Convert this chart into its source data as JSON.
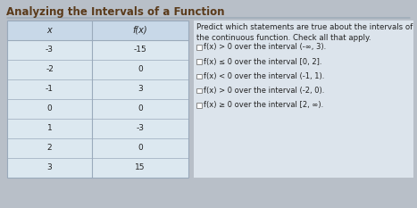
{
  "title": "Analyzing the Intervals of a Function",
  "table_headers": [
    "x",
    "f(x)"
  ],
  "table_rows": [
    [
      "-3",
      "-15"
    ],
    [
      "-2",
      "0"
    ],
    [
      "-1",
      "3"
    ],
    [
      "0",
      "0"
    ],
    [
      "1",
      "-3"
    ],
    [
      "2",
      "0"
    ],
    [
      "3",
      "15"
    ]
  ],
  "prompt_text": "Predict which statements are true about the intervals of\nthe continuous function. Check all that apply.",
  "options": [
    "f(x) > 0 over the interval (-∞, 3).",
    "f(x) ≤ 0 over the interval [0, 2].",
    "f(x) < 0 over the interval (-1, 1).",
    "f(x) > 0 over the interval (-2, 0).",
    "f(x) ≥ 0 over the interval [2, ∞)."
  ],
  "bg_color": "#b8bfc8",
  "table_bg": "#dce8f0",
  "table_header_bg": "#c8d8e8",
  "table_border_color": "#9aaabb",
  "right_panel_bg": "#dce4ec",
  "title_color": "#5a3a1a",
  "text_color": "#222222",
  "checkbox_color": "#888888",
  "title_fontsize": 8.5,
  "header_fontsize": 7.0,
  "body_fontsize": 6.5,
  "prompt_fontsize": 6.2,
  "option_fontsize": 6.0
}
